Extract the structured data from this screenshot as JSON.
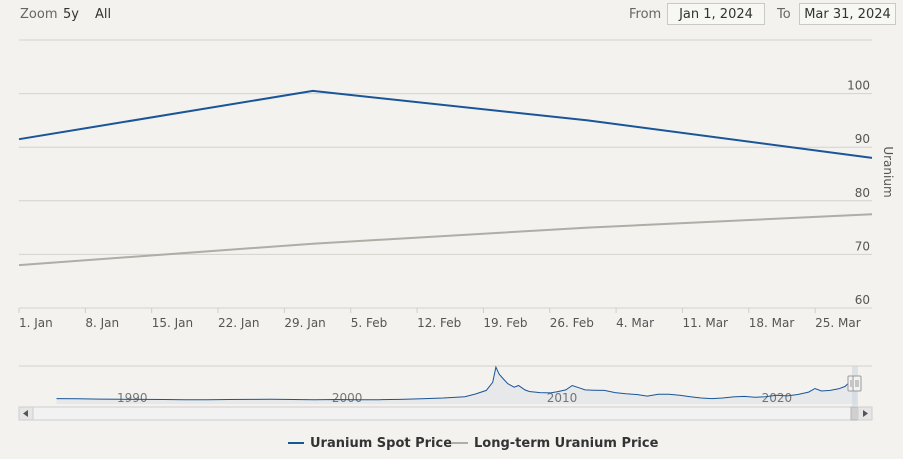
{
  "range_selector": {
    "zoom_label": "Zoom",
    "buttons": [
      "5y",
      "All"
    ],
    "from_label": "From",
    "from_value": "Jan 1, 2024",
    "to_label": "To",
    "to_value": "Mar 31, 2024"
  },
  "chart_data": {
    "type": "line",
    "ylabel": "Uranium",
    "ylim": [
      60,
      110
    ],
    "yticks": [
      60,
      70,
      80,
      90,
      100
    ],
    "xlim": [
      "2024-01-01",
      "2024-03-31"
    ],
    "xticks": [
      {
        "date": "2024-01-01",
        "label": "1. Jan"
      },
      {
        "date": "2024-01-08",
        "label": "8. Jan"
      },
      {
        "date": "2024-01-15",
        "label": "15. Jan"
      },
      {
        "date": "2024-01-22",
        "label": "22. Jan"
      },
      {
        "date": "2024-01-29",
        "label": "29. Jan"
      },
      {
        "date": "2024-02-05",
        "label": "5. Feb"
      },
      {
        "date": "2024-02-12",
        "label": "12. Feb"
      },
      {
        "date": "2024-02-19",
        "label": "19. Feb"
      },
      {
        "date": "2024-02-26",
        "label": "26. Feb"
      },
      {
        "date": "2024-03-04",
        "label": "4. Mar"
      },
      {
        "date": "2024-03-11",
        "label": "11. Mar"
      },
      {
        "date": "2024-03-18",
        "label": "18. Mar"
      },
      {
        "date": "2024-03-25",
        "label": "25. Mar"
      }
    ],
    "grid": true,
    "legend_position": "bottom",
    "series": [
      {
        "name": "Uranium Spot Price",
        "color": "#1a5598",
        "points": [
          {
            "x": "2024-01-01",
            "y": 91.5
          },
          {
            "x": "2024-02-01",
            "y": 100.5
          },
          {
            "x": "2024-03-01",
            "y": 95.0
          },
          {
            "x": "2024-03-31",
            "y": 88.0
          }
        ]
      },
      {
        "name": "Long-term Uranium Price",
        "color": "#b0aca6",
        "points": [
          {
            "x": "2024-01-01",
            "y": 68.0
          },
          {
            "x": "2024-02-01",
            "y": 72.0
          },
          {
            "x": "2024-03-01",
            "y": 75.0
          },
          {
            "x": "2024-03-31",
            "y": 77.5
          }
        ]
      }
    ]
  },
  "navigator": {
    "year_labels": [
      "1990",
      "2000",
      "2010",
      "2020"
    ],
    "series_color": "#1a5598",
    "history": [
      [
        1987,
        20
      ],
      [
        1988,
        19
      ],
      [
        1989,
        18
      ],
      [
        1990,
        17.5
      ],
      [
        1991,
        17
      ],
      [
        1992,
        16.5
      ],
      [
        1993,
        16
      ],
      [
        1994,
        15.5
      ],
      [
        1995,
        16.5
      ],
      [
        1996,
        17
      ],
      [
        1997,
        17.5
      ],
      [
        1998,
        16.5
      ],
      [
        1999,
        16
      ],
      [
        2000,
        16.5
      ],
      [
        2001,
        15.5
      ],
      [
        2002,
        16
      ],
      [
        2003,
        17
      ],
      [
        2004,
        19
      ],
      [
        2005,
        22
      ],
      [
        2006,
        27
      ],
      [
        2006.5,
        37
      ],
      [
        2007,
        50
      ],
      [
        2007.3,
        80
      ],
      [
        2007.45,
        136
      ],
      [
        2007.6,
        110
      ],
      [
        2007.8,
        92
      ],
      [
        2008,
        75
      ],
      [
        2008.3,
        62
      ],
      [
        2008.5,
        68
      ],
      [
        2008.8,
        52
      ],
      [
        2009,
        46
      ],
      [
        2009.5,
        42
      ],
      [
        2010,
        41
      ],
      [
        2010.3,
        45
      ],
      [
        2010.7,
        52
      ],
      [
        2011,
        68
      ],
      [
        2011.3,
        60
      ],
      [
        2011.6,
        52
      ],
      [
        2012,
        51
      ],
      [
        2012.5,
        50
      ],
      [
        2013,
        42
      ],
      [
        2013.5,
        38
      ],
      [
        2014,
        35
      ],
      [
        2014.5,
        29
      ],
      [
        2015,
        36
      ],
      [
        2015.5,
        36
      ],
      [
        2016,
        32
      ],
      [
        2016.5,
        27
      ],
      [
        2017,
        22
      ],
      [
        2017.5,
        20
      ],
      [
        2018,
        22
      ],
      [
        2018.5,
        26
      ],
      [
        2019,
        28
      ],
      [
        2019.5,
        25
      ],
      [
        2020,
        27
      ],
      [
        2020.5,
        32
      ],
      [
        2021,
        30
      ],
      [
        2021.5,
        35
      ],
      [
        2022,
        44
      ],
      [
        2022.3,
        57
      ],
      [
        2022.6,
        48
      ],
      [
        2023,
        50
      ],
      [
        2023.4,
        56
      ],
      [
        2023.7,
        65
      ],
      [
        2023.9,
        80
      ],
      [
        2024,
        92
      ],
      [
        2024.1,
        100
      ],
      [
        2024.25,
        88
      ]
    ]
  },
  "legend": {
    "spot_label": "Uranium Spot Price",
    "longterm_label": "Long-term Uranium Price",
    "spot_color": "#1a5598",
    "longterm_color": "#b0aca6"
  }
}
